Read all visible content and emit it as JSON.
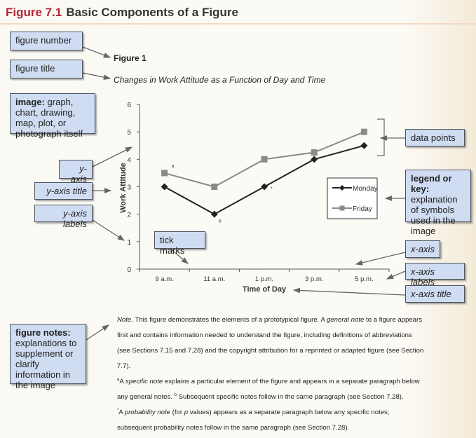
{
  "header": {
    "number": "Figure 7.1",
    "title": "Basic Components of a Figure"
  },
  "figure": {
    "number": "Figure 1",
    "title": "Changes in Work Attitude as a Function of Day and Time"
  },
  "callouts": {
    "figure_number": "figure number",
    "figure_title": "figure title",
    "image_bold": "image:",
    "image_text": "graph, chart, drawing, map, plot, or photograph itself",
    "y_axis": "y-axis",
    "y_axis_title": "y-axis title",
    "y_axis_labels": "y-axis labels",
    "tick_marks": "tick marks",
    "data_points": "data points",
    "legend_bold": "legend or key:",
    "legend_text": "explanation of symbols used in the image",
    "x_axis": "x-axis",
    "x_axis_labels": "x-axis labels",
    "x_axis_title": "x-axis title",
    "notes_bold": "figure notes:",
    "notes_text": "explanations to supplement or clarify information in the image"
  },
  "chart_data": {
    "type": "line",
    "categories": [
      "9 a.m.",
      "11 a.m.",
      "1 p.m.",
      "3 p.m.",
      "5 p.m."
    ],
    "xlabel": "Time of Day",
    "ylabel": "Work Attitude",
    "ylim": [
      0,
      6
    ],
    "yticks": [
      "0",
      "1",
      "2",
      "3",
      "4",
      "5",
      "6"
    ],
    "grid": false,
    "legend": "right",
    "series": [
      {
        "name": "Monday",
        "values": [
          3,
          2,
          3,
          4,
          4.5
        ],
        "color": "#222222",
        "marker": "diamond"
      },
      {
        "name": "Friday",
        "values": [
          3.5,
          3,
          4,
          4.25,
          5
        ],
        "color": "#8a8a8a",
        "marker": "square"
      }
    ],
    "annotations": [
      {
        "series": "Friday",
        "category": "9 a.m.",
        "text": "a"
      },
      {
        "series": "Monday",
        "category": "11 a.m.",
        "text": "b"
      },
      {
        "series": "Monday",
        "category": "1 p.m.",
        "text": "*"
      }
    ]
  },
  "notes": {
    "general_label": "Note.",
    "general_1": " This figure demonstrates the elements of a prototypical figure. A ",
    "general_term": "general note",
    "general_2": " to a figure appears first and contains information needed to understand the figure, including definitions of abbreviations (see Sections 7.15 and 7.28) and the copyright attribution for a reprinted or adapted figure (see Section 7.7).",
    "specific_sup_a": "a",
    "specific_1": "A ",
    "specific_term": "specific note",
    "specific_2": " explains a particular element of the figure and appears in a separate paragraph below any general notes. ",
    "specific_sup_b": "b",
    "specific_3": " Subsequent specific notes follow in the same paragraph (see Section 7.28).",
    "prob_sup": "*",
    "prob_1": "A ",
    "prob_term": "probability note",
    "prob_2": " (for ",
    "prob_p": "p",
    "prob_3": " values) appears as a separate paragraph below any specific notes; subsequent probability notes follow in the same paragraph (see Section 7.28)."
  }
}
